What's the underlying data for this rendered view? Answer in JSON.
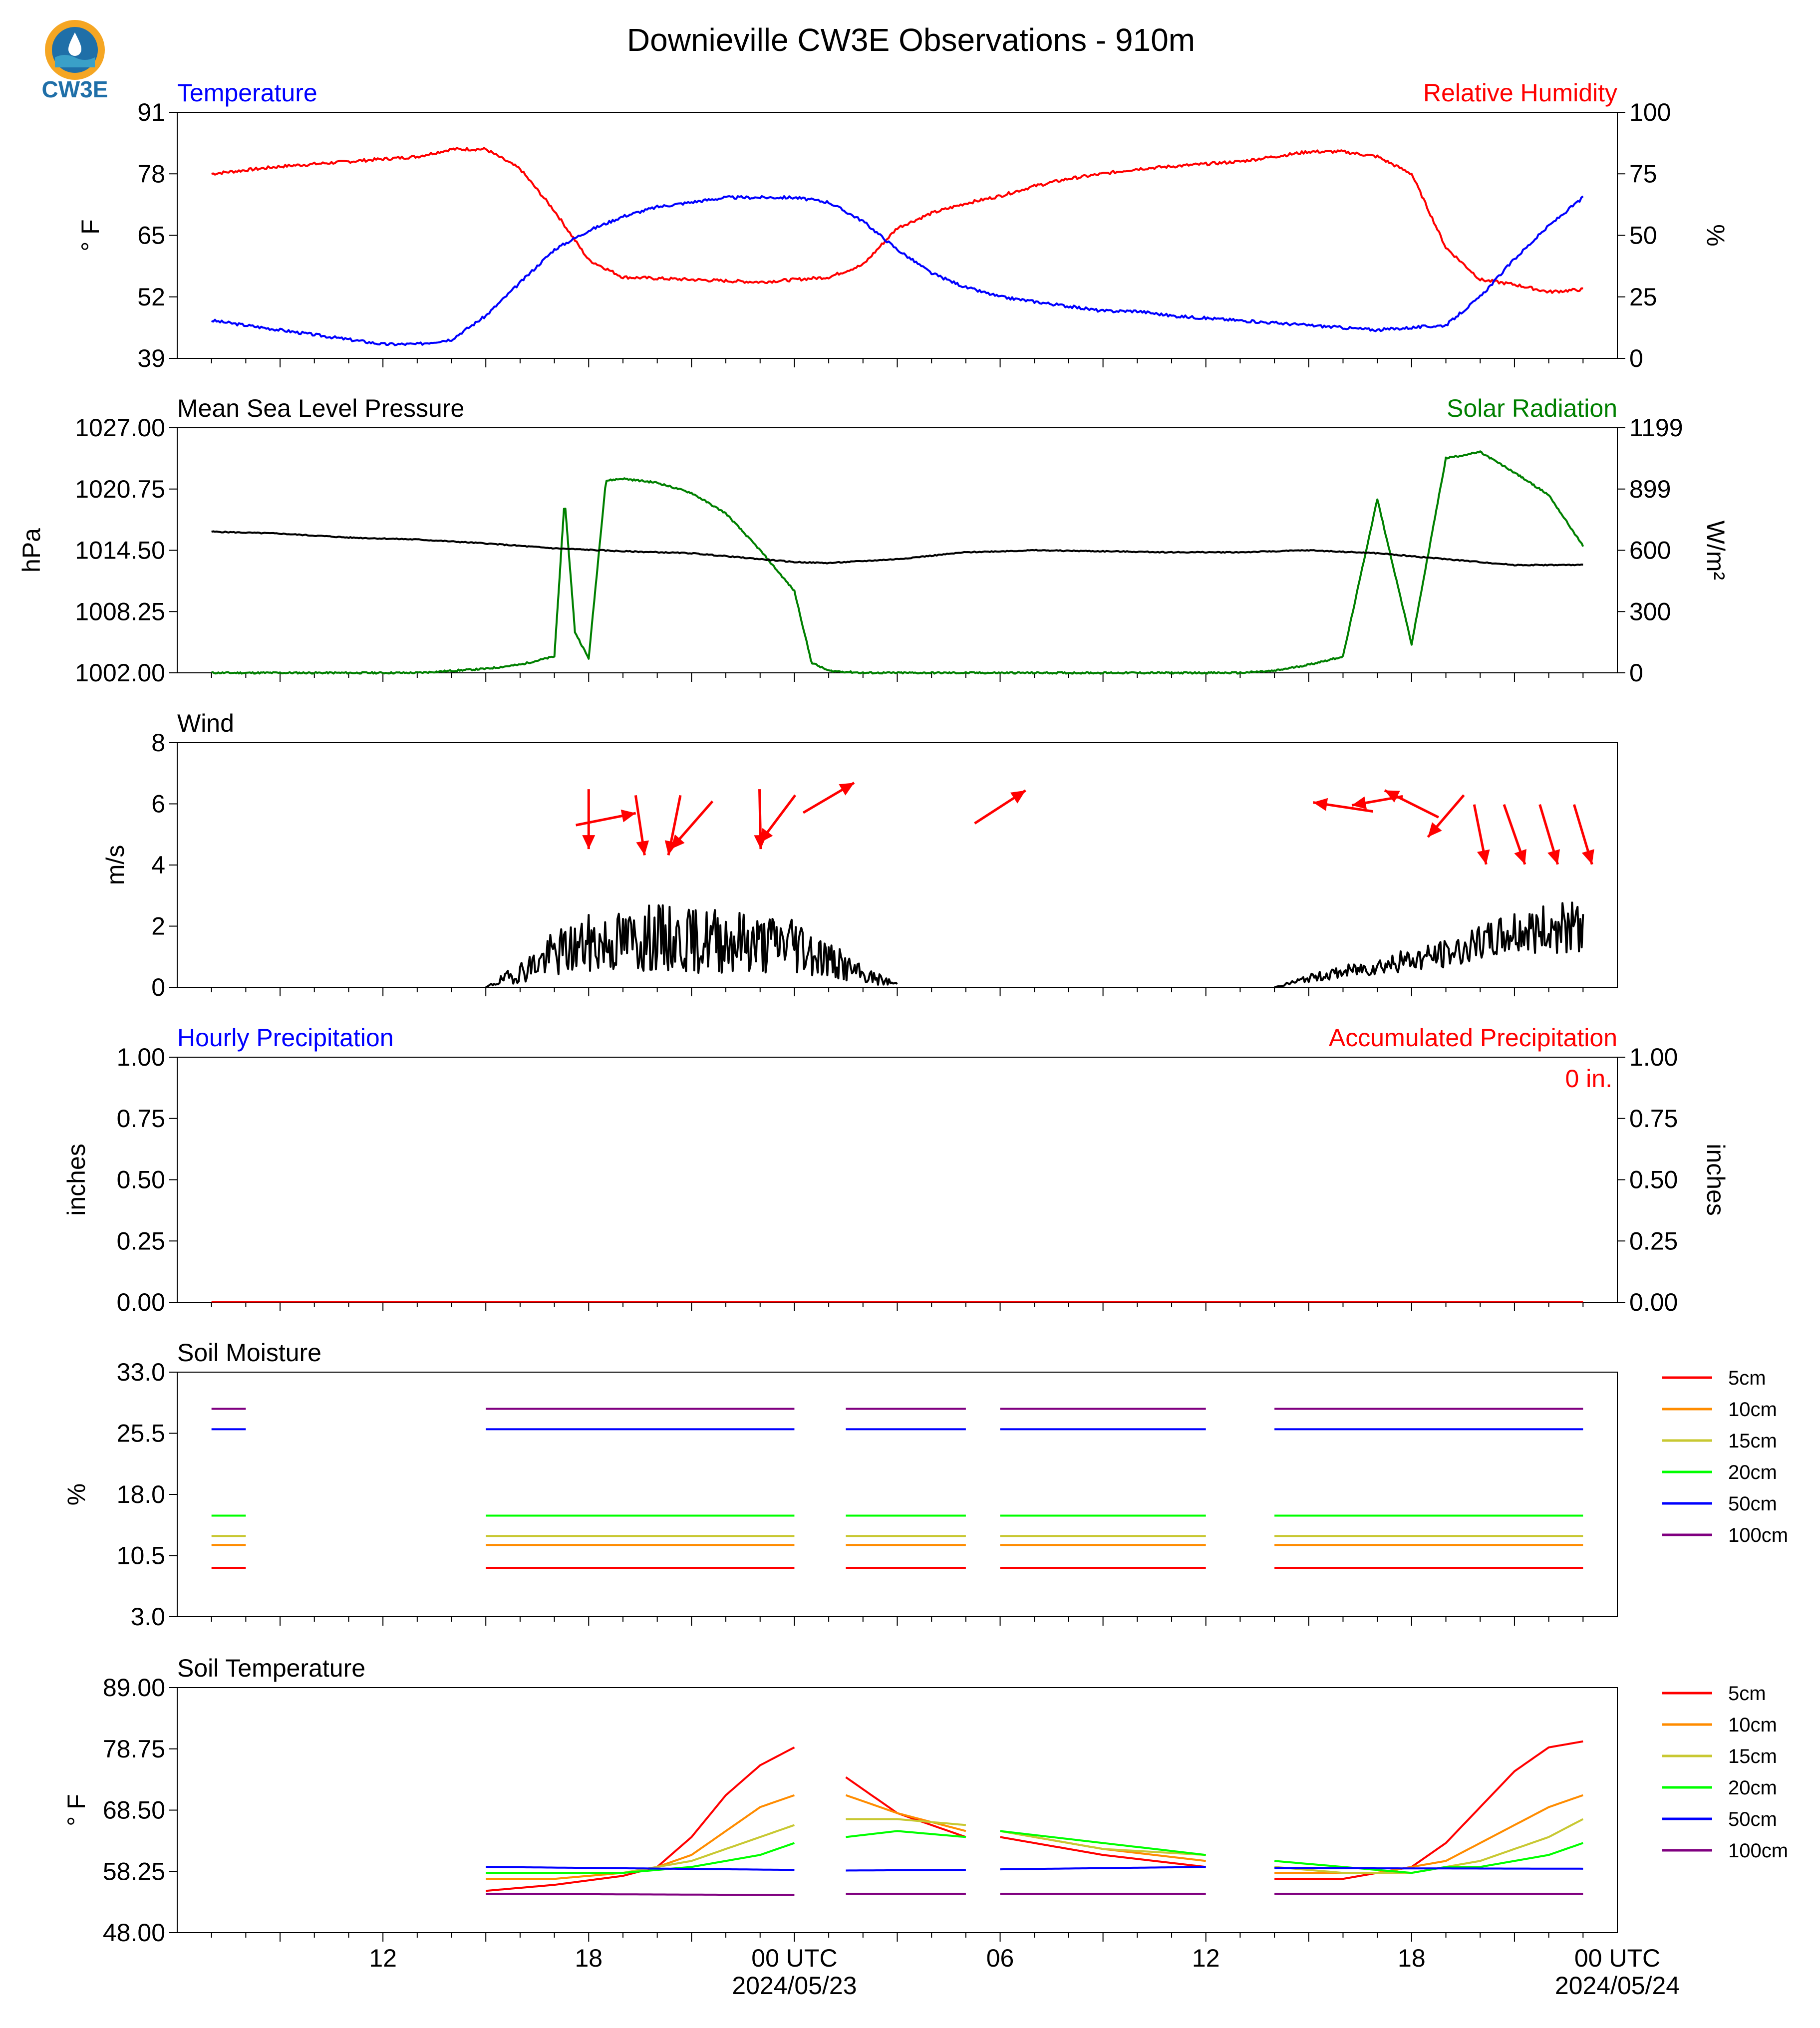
{
  "title": "Downieville CW3E Observations - 910m",
  "logo": {
    "text": "CW3E",
    "colors": {
      "orange": "#f5a623",
      "blue": "#1f6fa8",
      "teal": "#3aa0c8"
    }
  },
  "colors": {
    "temp": "#0000ff",
    "rh": "#ff0000",
    "pressure": "#000000",
    "solar": "#008000",
    "wind": "#000000",
    "arrow": "#ff0000",
    "hourly": "#0000ff",
    "accum": "#ff0000"
  },
  "xaxis": {
    "ticks": [
      {
        "label": "12",
        "sub": ""
      },
      {
        "label": "18",
        "sub": ""
      },
      {
        "label": "00 UTC",
        "sub": "2024/05/23"
      },
      {
        "label": "06",
        "sub": ""
      },
      {
        "label": "12",
        "sub": ""
      },
      {
        "label": "18",
        "sub": ""
      },
      {
        "label": "00 UTC",
        "sub": "2024/05/24"
      }
    ]
  },
  "panels": {
    "temp": {
      "left_title": "Temperature",
      "right_title": "Relative Humidity",
      "ylabel_left": "° F",
      "ylabel_right": "%",
      "left_ticks": [
        "39",
        "52",
        "65",
        "78",
        "91"
      ],
      "right_ticks": [
        "0",
        "25",
        "50",
        "75",
        "100"
      ]
    },
    "pressure": {
      "left_title": "Mean Sea Level Pressure",
      "right_title": "Solar Radiation",
      "ylabel_left": "hPa",
      "ylabel_right": "W/m²",
      "left_ticks": [
        "1002.00",
        "1008.25",
        "1014.50",
        "1020.75",
        "1027.00"
      ],
      "right_ticks": [
        "0",
        "300",
        "600",
        "899",
        "1199"
      ]
    },
    "wind": {
      "left_title": "Wind",
      "ylabel_left": "m/s",
      "left_ticks": [
        "0",
        "2",
        "4",
        "6",
        "8"
      ]
    },
    "precip": {
      "left_title": "Hourly Precipitation",
      "right_title": "Accumulated Precipitation",
      "ylabel_left": "inches",
      "ylabel_right": "inches",
      "left_ticks": [
        "0.00",
        "0.25",
        "0.50",
        "0.75",
        "1.00"
      ],
      "right_ticks": [
        "0.00",
        "0.25",
        "0.50",
        "0.75",
        "1.00"
      ],
      "accum_label": "0 in."
    },
    "soil_moisture": {
      "left_title": "Soil Moisture",
      "ylabel_left": "%",
      "left_ticks": [
        "3.0",
        "10.5",
        "18.0",
        "25.5",
        "33.0"
      ]
    },
    "soil_temp": {
      "left_title": "Soil Temperature",
      "ylabel_left": "° F",
      "left_ticks": [
        "48.00",
        "58.25",
        "68.50",
        "78.75",
        "89.00"
      ]
    }
  },
  "legend": [
    {
      "label": "5cm",
      "color": "#ff0000"
    },
    {
      "label": "10cm",
      "color": "#ff8c00"
    },
    {
      "label": "15cm",
      "color": "#c8c832"
    },
    {
      "label": "20cm",
      "color": "#00ff00"
    },
    {
      "label": "50cm",
      "color": "#0000ff"
    },
    {
      "label": "100cm",
      "color": "#800080"
    }
  ],
  "chart_data": [
    {
      "type": "line",
      "title": "Temperature",
      "ylabel": "° F",
      "ylim": [
        39,
        91
      ],
      "x_unit": "hours since 2024-05-22 07 UTC",
      "xlim": [
        -1,
        41
      ],
      "series": [
        {
          "name": "Temperature",
          "axis": "left",
          "x": [
            0,
            2,
            4,
            5,
            6,
            7,
            8,
            9,
            10,
            11,
            12,
            13,
            14,
            15,
            16,
            17,
            18,
            19,
            20,
            21,
            22,
            23,
            24,
            25,
            26,
            27,
            28,
            30,
            32,
            34,
            36,
            37,
            38,
            39,
            40
          ],
          "y": [
            47,
            45,
            43,
            42,
            42,
            43,
            48,
            55,
            62,
            66,
            69,
            71,
            72,
            73,
            73,
            73,
            72,
            68,
            62,
            57,
            54,
            52,
            51,
            50,
            49,
            49,
            48,
            47,
            46,
            45,
            46,
            52,
            60,
            67,
            73
          ]
        },
        {
          "name": "Relative Humidity",
          "axis": "right",
          "ylim": [
            0,
            100
          ],
          "x": [
            0,
            2,
            4,
            6,
            7,
            8,
            9,
            10,
            11,
            12,
            14,
            16,
            17,
            18,
            19,
            20,
            21,
            22,
            23,
            24,
            25,
            26,
            27,
            28,
            30,
            31,
            32,
            33,
            34,
            35,
            36,
            37,
            38,
            39,
            40
          ],
          "y": [
            75,
            78,
            80,
            82,
            85,
            85,
            77,
            60,
            40,
            33,
            32,
            31,
            32,
            33,
            38,
            53,
            59,
            63,
            66,
            70,
            73,
            75,
            77,
            78,
            80,
            82,
            84,
            84,
            82,
            75,
            45,
            32,
            30,
            27,
            28
          ]
        }
      ]
    },
    {
      "type": "line",
      "title": "Mean Sea Level Pressure",
      "ylabel": "hPa",
      "ylim": [
        1002.0,
        1027.0
      ],
      "xlim": [
        -1,
        41
      ],
      "series": [
        {
          "name": "Mean Sea Level Pressure",
          "axis": "left",
          "x": [
            0,
            2,
            4,
            6,
            8,
            10,
            12,
            14,
            16,
            17,
            18,
            20,
            22,
            24,
            26,
            28,
            30,
            32,
            34,
            36,
            38,
            40
          ],
          "y": [
            1016.4,
            1016.2,
            1015.8,
            1015.6,
            1015.2,
            1014.7,
            1014.4,
            1014.2,
            1013.6,
            1013.3,
            1013.2,
            1013.6,
            1014.3,
            1014.5,
            1014.4,
            1014.3,
            1014.3,
            1014.5,
            1014.2,
            1013.6,
            1013.0,
            1013.0
          ]
        },
        {
          "name": "Solar Radiation",
          "axis": "right",
          "ylim": [
            0,
            1199
          ],
          "x": [
            0,
            3,
            6,
            8,
            9,
            10,
            10.3,
            10.6,
            11,
            11.5,
            12,
            13,
            14,
            15,
            16,
            17,
            17.5,
            18,
            19,
            20,
            22,
            24,
            26,
            27,
            28,
            29,
            30,
            31,
            32,
            33,
            34,
            35,
            36,
            37,
            38,
            39,
            40
          ],
          "y": [
            0,
            0,
            0,
            20,
            40,
            80,
            850,
            200,
            70,
            940,
            950,
            930,
            880,
            780,
            600,
            400,
            50,
            10,
            0,
            0,
            0,
            0,
            0,
            0,
            0,
            0,
            0,
            10,
            40,
            80,
            850,
            140,
            1050,
            1080,
            980,
            870,
            620
          ]
        }
      ]
    },
    {
      "type": "line",
      "title": "Wind",
      "ylabel": "m/s",
      "ylim": [
        0,
        8
      ],
      "xlim": [
        -1,
        41
      ],
      "series": [
        {
          "name": "Wind speed",
          "x": [
            8,
            9,
            10,
            11,
            12,
            13,
            14,
            15,
            16,
            17,
            18,
            19,
            20,
            31,
            32,
            33,
            34,
            35,
            36,
            37,
            38,
            39,
            40
          ],
          "y": [
            0.0,
            0.5,
            1.1,
            1.4,
            1.5,
            1.6,
            1.5,
            1.6,
            1.4,
            1.5,
            0.9,
            0.4,
            0.1,
            0.0,
            0.3,
            0.5,
            0.7,
            0.9,
            1.1,
            1.4,
            1.8,
            1.9,
            2.0
          ]
        },
        {
          "name": "Wind direction arrows",
          "x": [
            11,
            11.5,
            12.5,
            13.5,
            14,
            16,
            16.5,
            18,
            23,
            33,
            34,
            35,
            36,
            37,
            38,
            39,
            40
          ],
          "y": [
            5.5,
            5.5,
            5.3,
            5.3,
            5.3,
            5.5,
            5.5,
            6.2,
            5.9,
            5.9,
            6.1,
            6.0,
            5.6,
            5.0,
            5.0,
            5.0,
            5.0
          ]
        }
      ]
    },
    {
      "type": "line",
      "title": "Hourly Precipitation",
      "ylabel": "inches",
      "ylim": [
        0.0,
        1.0
      ],
      "xlim": [
        -1,
        41
      ],
      "series": [
        {
          "name": "Hourly Precipitation",
          "x": [
            0,
            40
          ],
          "y": [
            0,
            0
          ]
        },
        {
          "name": "Accumulated Precipitation",
          "x": [
            0,
            40
          ],
          "y": [
            0,
            0
          ]
        }
      ]
    },
    {
      "type": "line",
      "title": "Soil Moisture",
      "ylabel": "%",
      "ylim": [
        3.0,
        33.0
      ],
      "xlim": [
        -1,
        41
      ],
      "segments": [
        [
          0,
          1
        ],
        [
          8,
          17
        ],
        [
          18.5,
          22
        ],
        [
          23,
          29
        ],
        [
          31,
          40
        ]
      ],
      "series": [
        {
          "name": "5cm",
          "value": 9.0
        },
        {
          "name": "10cm",
          "value": 11.8
        },
        {
          "name": "15cm",
          "value": 12.9
        },
        {
          "name": "20cm",
          "value": 15.4
        },
        {
          "name": "50cm",
          "value": 26.0
        },
        {
          "name": "100cm",
          "value": 28.5
        }
      ]
    },
    {
      "type": "line",
      "title": "Soil Temperature",
      "ylabel": "° F",
      "ylim": [
        48.0,
        89.0
      ],
      "xlim": [
        -1,
        41
      ],
      "segments": [
        [
          8,
          17
        ],
        [
          18.5,
          22
        ],
        [
          23,
          29
        ],
        [
          31,
          40
        ]
      ],
      "series": [
        {
          "name": "5cm",
          "x": [
            8,
            10,
            12,
            13,
            14,
            15,
            16,
            17,
            18.5,
            20,
            22,
            23,
            26,
            29,
            31,
            33,
            34,
            35,
            36,
            37,
            38,
            39,
            40
          ],
          "y": [
            55,
            56,
            57.5,
            59,
            64,
            71,
            76,
            79,
            74,
            68,
            64,
            64,
            61,
            59,
            57,
            57,
            58,
            59,
            63,
            69,
            75,
            79,
            80
          ]
        },
        {
          "name": "10cm",
          "x": [
            8,
            10,
            12,
            13,
            14,
            15,
            16,
            17,
            18.5,
            20,
            22,
            23,
            26,
            29,
            31,
            33,
            34,
            35,
            36,
            37,
            38,
            39,
            40
          ],
          "y": [
            57,
            57,
            58,
            59,
            61,
            65,
            69,
            71,
            71,
            68,
            65,
            65,
            62,
            60,
            58,
            58,
            58,
            59,
            60,
            63,
            66,
            69,
            71
          ]
        },
        {
          "name": "15cm",
          "x": [
            8,
            10,
            12,
            13,
            14,
            15,
            16,
            17,
            18.5,
            20,
            22,
            23,
            26,
            29,
            31,
            33,
            34,
            35,
            36,
            37,
            38,
            39,
            40
          ],
          "y": [
            58,
            58,
            58,
            59,
            60,
            62,
            64,
            66,
            67,
            67,
            66,
            65,
            62,
            61,
            59,
            58,
            58,
            58,
            59,
            60,
            62,
            64,
            67
          ]
        },
        {
          "name": "20cm",
          "x": [
            8,
            10,
            12,
            14,
            16,
            17,
            18.5,
            20,
            22,
            23,
            26,
            29,
            31,
            33,
            35,
            36,
            37,
            38,
            39,
            40
          ],
          "y": [
            58,
            58,
            58,
            59,
            61,
            63,
            64,
            65,
            64,
            65,
            63,
            61,
            60,
            59,
            58,
            59,
            59,
            60,
            61,
            63
          ]
        },
        {
          "name": "50cm",
          "x": [
            8,
            17,
            18.5,
            22,
            23,
            29,
            31,
            40
          ],
          "y": [
            59,
            58.5,
            58.4,
            58.5,
            58.6,
            59,
            58.8,
            58.7
          ]
        },
        {
          "name": "100cm",
          "x": [
            8,
            17,
            18.5,
            22,
            23,
            29,
            31,
            40
          ],
          "y": [
            54.5,
            54.3,
            54.5,
            54.5,
            54.5,
            54.5,
            54.5,
            54.5
          ]
        }
      ]
    }
  ]
}
